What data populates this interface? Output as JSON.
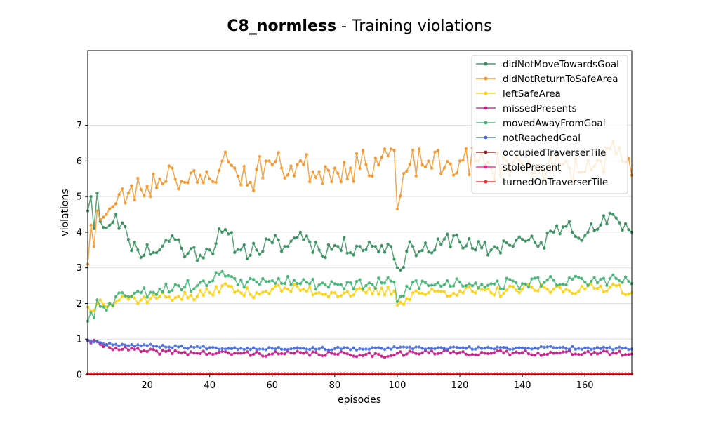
{
  "chart_data": {
    "type": "line",
    "title_bold": "C8_normless",
    "title_rest": " - Training violations",
    "xlabel": "episodes",
    "ylabel": "violations",
    "xlim": [
      1,
      175
    ],
    "ylim": [
      0,
      9.1
    ],
    "xticks": [
      20,
      40,
      60,
      80,
      100,
      120,
      140,
      160
    ],
    "yticks": [
      0,
      1,
      2,
      3,
      4,
      5,
      6,
      7
    ],
    "grid": "horizontal",
    "legend_position": "top-right",
    "series": [
      {
        "name": "didNotMoveTowardsGoal",
        "color": "#2e8b57",
        "anchors": [
          [
            1,
            4.6
          ],
          [
            2,
            5.0
          ],
          [
            3,
            4.1
          ],
          [
            4,
            5.1
          ],
          [
            5,
            4.3
          ],
          [
            8,
            4.2
          ],
          [
            10,
            4.5
          ],
          [
            14,
            3.8
          ],
          [
            17,
            3.5
          ],
          [
            24,
            3.5
          ],
          [
            28,
            3.9
          ],
          [
            33,
            3.4
          ],
          [
            40,
            3.5
          ],
          [
            44,
            4.0
          ],
          [
            50,
            3.5
          ],
          [
            55,
            3.5
          ],
          [
            60,
            3.7
          ],
          [
            65,
            3.6
          ],
          [
            69,
            4.0
          ],
          [
            75,
            3.5
          ],
          [
            81,
            3.6
          ],
          [
            88,
            3.6
          ],
          [
            93,
            3.6
          ],
          [
            98,
            3.6
          ],
          [
            100,
            3.0
          ],
          [
            105,
            3.6
          ],
          [
            112,
            3.5
          ],
          [
            118,
            3.9
          ],
          [
            125,
            3.5
          ],
          [
            130,
            3.5
          ],
          [
            135,
            3.7
          ],
          [
            140,
            3.8
          ],
          [
            145,
            3.6
          ],
          [
            150,
            4.0
          ],
          [
            155,
            4.3
          ],
          [
            160,
            3.9
          ],
          [
            165,
            4.2
          ],
          [
            170,
            4.4
          ],
          [
            175,
            4.0
          ]
        ],
        "amp": 0.26,
        "seed": 11
      },
      {
        "name": "didNotReturnToSafeArea",
        "color": "#f5901e",
        "anchors": [
          [
            1,
            3.1
          ],
          [
            2,
            4.2
          ],
          [
            3,
            3.6
          ],
          [
            4,
            4.6
          ],
          [
            7,
            4.5
          ],
          [
            10,
            4.8
          ],
          [
            14,
            5.1
          ],
          [
            18,
            5.2
          ],
          [
            24,
            5.5
          ],
          [
            28,
            5.8
          ],
          [
            32,
            5.4
          ],
          [
            36,
            5.4
          ],
          [
            40,
            5.5
          ],
          [
            44,
            6.0
          ],
          [
            48,
            5.8
          ],
          [
            53,
            5.4
          ],
          [
            58,
            6.0
          ],
          [
            63,
            5.8
          ],
          [
            68,
            5.9
          ],
          [
            75,
            5.7
          ],
          [
            80,
            5.8
          ],
          [
            85,
            5.8
          ],
          [
            90,
            5.9
          ],
          [
            95,
            6.1
          ],
          [
            99,
            6.3
          ],
          [
            100,
            4.65
          ],
          [
            104,
            5.9
          ],
          [
            110,
            6.0
          ],
          [
            115,
            5.8
          ],
          [
            120,
            6.0
          ],
          [
            125,
            6.0
          ],
          [
            130,
            5.8
          ],
          [
            135,
            6.0
          ],
          [
            140,
            5.9
          ],
          [
            145,
            5.9
          ],
          [
            150,
            5.8
          ],
          [
            155,
            5.8
          ],
          [
            160,
            5.7
          ],
          [
            165,
            6.0
          ],
          [
            170,
            6.2
          ],
          [
            175,
            5.6
          ]
        ],
        "amp": 0.42,
        "seed": 23
      },
      {
        "name": "leftSafeArea",
        "color": "#ffd000",
        "anchors": [
          [
            1,
            1.9
          ],
          [
            3,
            1.8
          ],
          [
            5,
            2.1
          ],
          [
            8,
            2.0
          ],
          [
            12,
            2.2
          ],
          [
            18,
            2.1
          ],
          [
            24,
            2.2
          ],
          [
            30,
            2.2
          ],
          [
            36,
            2.2
          ],
          [
            40,
            2.3
          ],
          [
            44,
            2.5
          ],
          [
            50,
            2.3
          ],
          [
            55,
            2.3
          ],
          [
            60,
            2.4
          ],
          [
            65,
            2.4
          ],
          [
            70,
            2.4
          ],
          [
            75,
            2.3
          ],
          [
            80,
            2.3
          ],
          [
            90,
            2.3
          ],
          [
            99,
            2.35
          ],
          [
            100,
            1.95
          ],
          [
            105,
            2.3
          ],
          [
            110,
            2.3
          ],
          [
            120,
            2.35
          ],
          [
            130,
            2.3
          ],
          [
            140,
            2.4
          ],
          [
            150,
            2.4
          ],
          [
            160,
            2.4
          ],
          [
            170,
            2.5
          ],
          [
            175,
            2.3
          ]
        ],
        "amp": 0.14,
        "seed": 37
      },
      {
        "name": "missedPresents",
        "color": "#c71585",
        "anchors": [
          [
            1,
            0.95
          ],
          [
            5,
            0.85
          ],
          [
            10,
            0.75
          ],
          [
            20,
            0.65
          ],
          [
            30,
            0.63
          ],
          [
            40,
            0.6
          ],
          [
            50,
            0.6
          ],
          [
            60,
            0.58
          ],
          [
            70,
            0.6
          ],
          [
            80,
            0.58
          ],
          [
            90,
            0.57
          ],
          [
            99,
            0.55
          ],
          [
            100,
            0.6
          ],
          [
            110,
            0.62
          ],
          [
            120,
            0.62
          ],
          [
            130,
            0.6
          ],
          [
            140,
            0.62
          ],
          [
            150,
            0.6
          ],
          [
            160,
            0.62
          ],
          [
            170,
            0.6
          ],
          [
            175,
            0.58
          ]
        ],
        "amp": 0.07,
        "seed": 41
      },
      {
        "name": "movedAwayFromGoal",
        "color": "#3cb371",
        "anchors": [
          [
            1,
            1.5
          ],
          [
            2,
            1.75
          ],
          [
            3,
            1.6
          ],
          [
            4,
            2.1
          ],
          [
            6,
            1.9
          ],
          [
            8,
            2.0
          ],
          [
            12,
            2.3
          ],
          [
            18,
            2.3
          ],
          [
            24,
            2.4
          ],
          [
            30,
            2.5
          ],
          [
            36,
            2.5
          ],
          [
            40,
            2.6
          ],
          [
            44,
            2.9
          ],
          [
            48,
            2.7
          ],
          [
            52,
            2.6
          ],
          [
            57,
            2.7
          ],
          [
            62,
            2.7
          ],
          [
            67,
            2.65
          ],
          [
            72,
            2.55
          ],
          [
            80,
            2.55
          ],
          [
            90,
            2.5
          ],
          [
            99,
            2.6
          ],
          [
            100,
            2.05
          ],
          [
            105,
            2.6
          ],
          [
            110,
            2.5
          ],
          [
            120,
            2.6
          ],
          [
            130,
            2.55
          ],
          [
            140,
            2.55
          ],
          [
            150,
            2.65
          ],
          [
            160,
            2.6
          ],
          [
            170,
            2.7
          ],
          [
            175,
            2.55
          ]
        ],
        "amp": 0.17,
        "seed": 53
      },
      {
        "name": "notReachedGoal",
        "color": "#4169e1",
        "anchors": [
          [
            1,
            0.97
          ],
          [
            5,
            0.9
          ],
          [
            10,
            0.85
          ],
          [
            20,
            0.82
          ],
          [
            30,
            0.78
          ],
          [
            40,
            0.76
          ],
          [
            50,
            0.74
          ],
          [
            60,
            0.74
          ],
          [
            70,
            0.74
          ],
          [
            80,
            0.73
          ],
          [
            90,
            0.72
          ],
          [
            100,
            0.75
          ],
          [
            110,
            0.74
          ],
          [
            120,
            0.75
          ],
          [
            130,
            0.74
          ],
          [
            140,
            0.75
          ],
          [
            150,
            0.76
          ],
          [
            160,
            0.75
          ],
          [
            170,
            0.74
          ],
          [
            175,
            0.72
          ]
        ],
        "amp": 0.04,
        "seed": 67
      },
      {
        "name": "occupiedTraverserTile",
        "color": "#8b1a1a",
        "anchors": [
          [
            1,
            0.02
          ],
          [
            175,
            0.02
          ]
        ],
        "amp": 0.0,
        "seed": 71
      },
      {
        "name": "stolePresent",
        "color": "#ff1493",
        "anchors": [
          [
            1,
            0.02
          ],
          [
            175,
            0.02
          ]
        ],
        "amp": 0.0,
        "seed": 73
      },
      {
        "name": "turnedOnTraverserTile",
        "color": "#ff2020",
        "anchors": [
          [
            1,
            0.02
          ],
          [
            175,
            0.02
          ]
        ],
        "amp": 0.0,
        "seed": 79
      }
    ]
  }
}
